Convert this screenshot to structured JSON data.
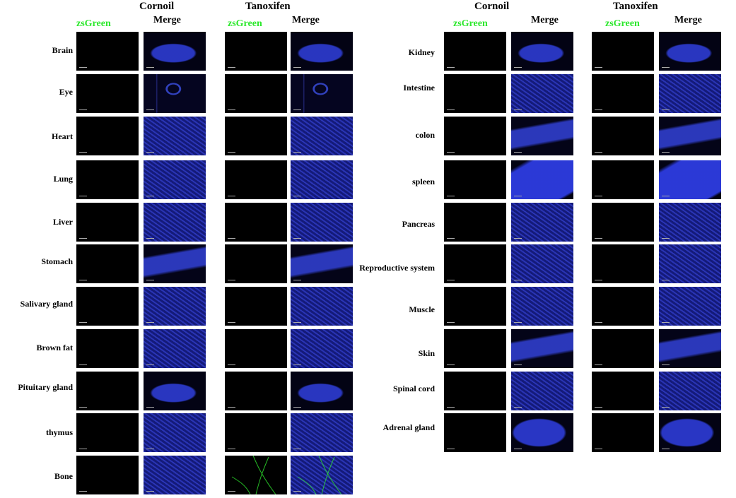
{
  "colors": {
    "zsgreen": "#2ee82e",
    "dapi": "#2a36d6",
    "background": "#000000"
  },
  "groups": [
    {
      "left_title": "Cornoil",
      "right_title": "Tanoxifen",
      "channel": "zsGreen",
      "merge": "Merge"
    },
    {
      "left_title": "Cornoil",
      "right_title": "Tanoxifen",
      "channel": "zsGreen",
      "merge": "Merge"
    }
  ],
  "left_tissues": [
    "Brain",
    "Eye",
    "Heart",
    "Lung",
    "Liver",
    "Stomach",
    "Salivary gland",
    "Brown fat",
    "Pituitary gland",
    "thymus",
    "Bone"
  ],
  "right_tissues": [
    "Kidney",
    "Intestine",
    "colon",
    "spleen",
    "Pancreas",
    "Reproductive system",
    "Muscle",
    "Skin",
    "Spinal cord",
    "Adrenal gland"
  ]
}
